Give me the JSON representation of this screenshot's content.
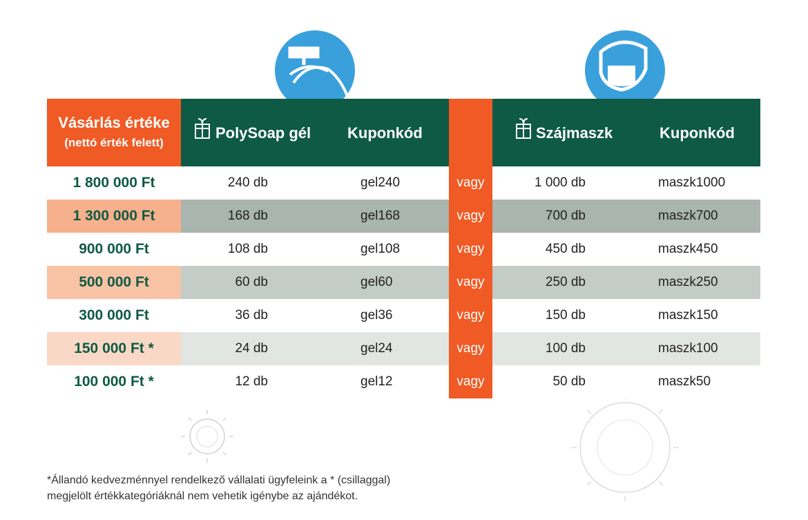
{
  "header": {
    "value_title": "Vásárlás értéke",
    "value_subtitle": "(nettó érték felett)",
    "columns": [
      "PolySoap gél",
      "Kuponkód",
      "Szájmaszk",
      "Kuponkód"
    ]
  },
  "table": {
    "rows": [
      [
        "1 800 000 Ft",
        "240 db",
        "gel240",
        "vagy",
        "1 000 db",
        "maszk1000"
      ],
      [
        "1 300 000 Ft",
        "168 db",
        "gel168",
        "vagy",
        "700 db",
        "maszk700"
      ],
      [
        "900 000 Ft",
        "108 db",
        "gel108",
        "vagy",
        "450 db",
        "maszk450"
      ],
      [
        "500 000 Ft",
        "60 db",
        "gel60",
        "vagy",
        "250 db",
        "maszk250"
      ],
      [
        "300 000 Ft",
        "36 db",
        "gel36",
        "vagy",
        "150 db",
        "maszk150"
      ],
      [
        "150 000 Ft *",
        "24 db",
        "gel24",
        "vagy",
        "100 db",
        "maszk100"
      ],
      [
        "100 000 Ft *",
        "12 db",
        "gel12",
        "vagy",
        "50 db",
        "maszk50"
      ]
    ]
  },
  "footnote": {
    "lines": [
      "*Állandó kedvezménnyel rendelkező vállalati ügyfeleink a * (csillaggal)",
      "megjelölt értékkategóriáknál nem vehetik igénybe az ajándékot."
    ]
  }
}
